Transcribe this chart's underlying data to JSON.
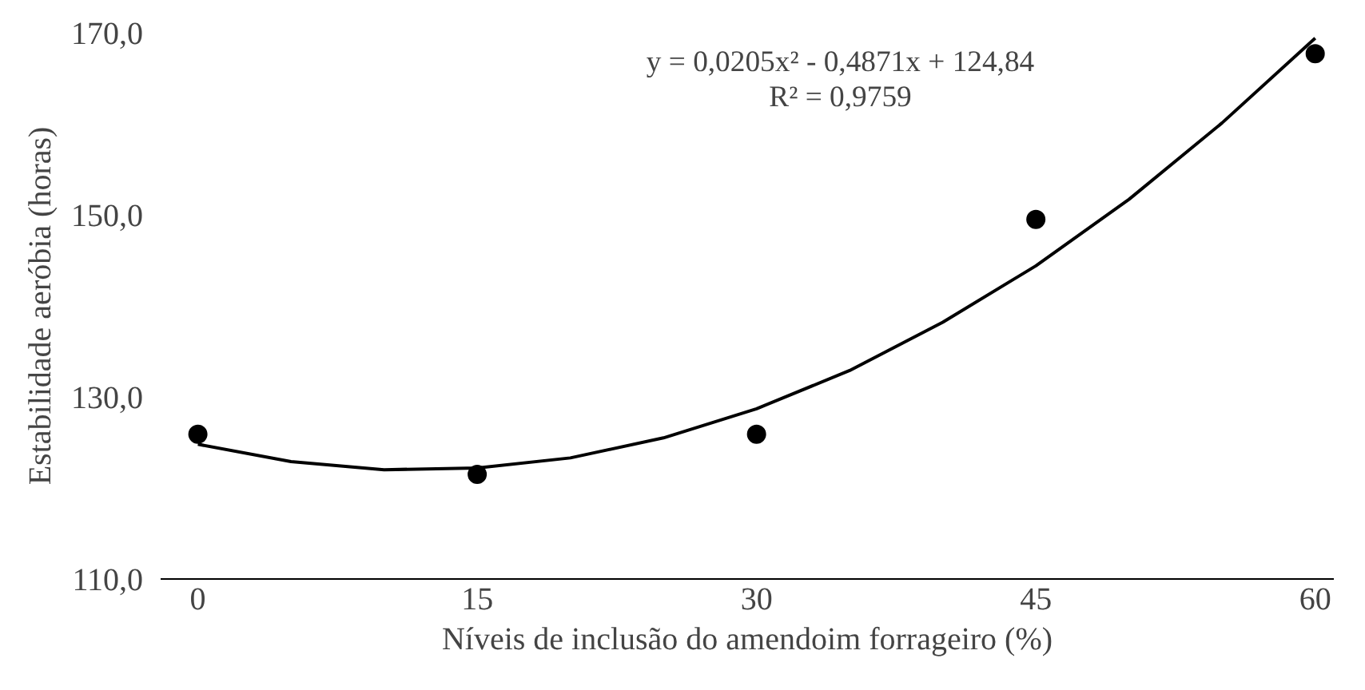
{
  "chart_data": {
    "type": "scatter",
    "xlabel": "Níveis de inclusão do amendoim forrageiro (%)",
    "ylabel": "Estabilidade aeróbia (horas)",
    "xlim": [
      -2,
      61
    ],
    "ylim": [
      110,
      170
    ],
    "xticks": [
      0,
      15,
      30,
      45,
      60
    ],
    "yticks": [
      {
        "value": 110,
        "label": "110,0"
      },
      {
        "value": 130,
        "label": "130,0"
      },
      {
        "value": 150,
        "label": "150,0"
      },
      {
        "value": 170,
        "label": "170,0"
      }
    ],
    "grid": false,
    "x": [
      0,
      15,
      30,
      45,
      60
    ],
    "series": [
      {
        "marker": "circle",
        "color": "#000000",
        "values": [
          125.9,
          121.5,
          125.9,
          149.5,
          167.7
        ]
      },
      {
        "type": "line",
        "marker": "none",
        "color": "#000000",
        "x": [
          0,
          5,
          10,
          15,
          20,
          25,
          30,
          35,
          40,
          45,
          50,
          55,
          60
        ],
        "values": [
          124.8,
          122.9,
          122.0,
          122.2,
          123.3,
          125.5,
          128.7,
          132.9,
          138.2,
          144.4,
          151.7,
          160.1,
          169.4
        ]
      }
    ],
    "annotations": [
      "y = 0,0205x² - 0,4871x + 124,84",
      "R² = 0,9759"
    ]
  }
}
